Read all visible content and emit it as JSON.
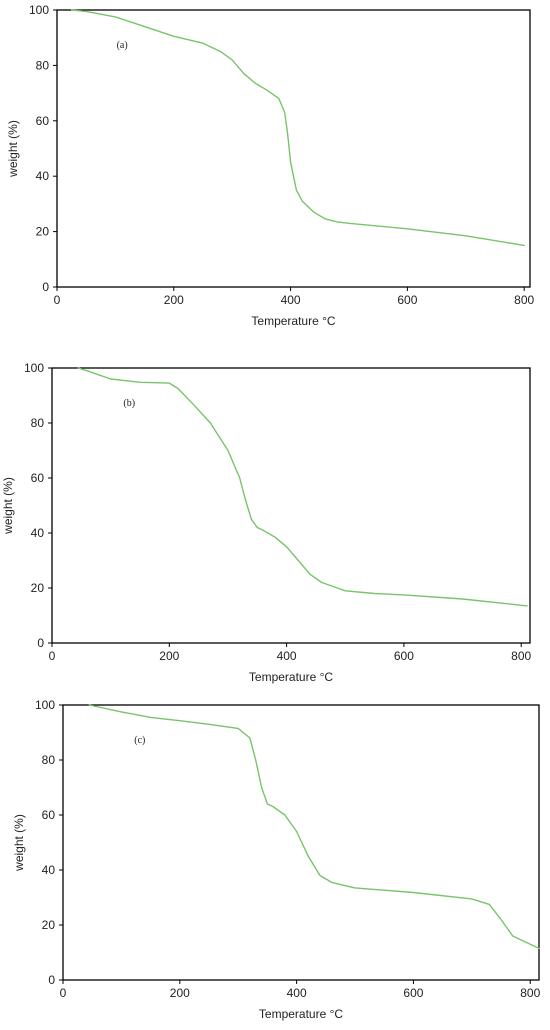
{
  "chart_data": [
    {
      "type": "line",
      "panel_label": "(a)",
      "xlabel": "Temperature °C",
      "ylabel": "weight (%)",
      "xlim": [
        0,
        810
      ],
      "ylim": [
        0,
        100
      ],
      "xticks": [
        0,
        200,
        400,
        600,
        800
      ],
      "yticks": [
        0,
        20,
        40,
        60,
        80,
        100
      ],
      "grid": false,
      "line_color": "#77c46a",
      "x": [
        25,
        50,
        100,
        150,
        200,
        250,
        280,
        300,
        320,
        340,
        360,
        380,
        390,
        395,
        400,
        410,
        420,
        440,
        460,
        480,
        500,
        600,
        700,
        800
      ],
      "y": [
        100,
        99.5,
        97.5,
        94,
        90.5,
        88,
        85,
        82,
        77,
        73.5,
        71,
        68,
        63,
        55,
        45,
        35,
        31,
        27,
        24.5,
        23.5,
        23,
        21,
        18.5,
        15
      ]
    },
    {
      "type": "line",
      "panel_label": "(b)",
      "xlabel": "Temperature °C",
      "ylabel": "weight (%)",
      "xlim": [
        0,
        815
      ],
      "ylim": [
        0,
        100
      ],
      "xticks": [
        0,
        200,
        400,
        600,
        800
      ],
      "yticks": [
        0,
        20,
        40,
        60,
        80,
        100
      ],
      "grid": false,
      "line_color": "#77c46a",
      "x": [
        45,
        60,
        100,
        150,
        200,
        215,
        240,
        270,
        300,
        320,
        330,
        340,
        350,
        360,
        380,
        400,
        420,
        440,
        460,
        480,
        500,
        550,
        600,
        700,
        810
      ],
      "y": [
        100,
        99,
        96,
        94.8,
        94.5,
        92.5,
        87,
        80,
        70,
        60,
        52,
        45,
        42,
        41,
        38.5,
        35,
        30,
        25,
        22,
        20.5,
        19,
        18,
        17.5,
        16,
        13.5
      ]
    },
    {
      "type": "line",
      "panel_label": "(c)",
      "xlabel": "Temperature °C",
      "ylabel": "weight (%)",
      "xlim": [
        0,
        815
      ],
      "ylim": [
        0,
        100
      ],
      "xticks": [
        0,
        200,
        400,
        600,
        800
      ],
      "yticks": [
        0,
        20,
        40,
        60,
        80,
        100
      ],
      "grid": false,
      "line_color": "#77c46a",
      "x": [
        45,
        100,
        150,
        200,
        250,
        300,
        320,
        330,
        340,
        350,
        360,
        380,
        400,
        420,
        440,
        460,
        500,
        600,
        700,
        730,
        750,
        770,
        790,
        815
      ],
      "y": [
        100,
        97.5,
        95.5,
        94.3,
        93,
        91.5,
        88,
        80,
        70,
        64,
        63,
        60,
        54,
        45,
        38,
        35.5,
        33.5,
        31.8,
        29.5,
        27.5,
        22,
        16,
        14,
        11.5
      ]
    }
  ]
}
